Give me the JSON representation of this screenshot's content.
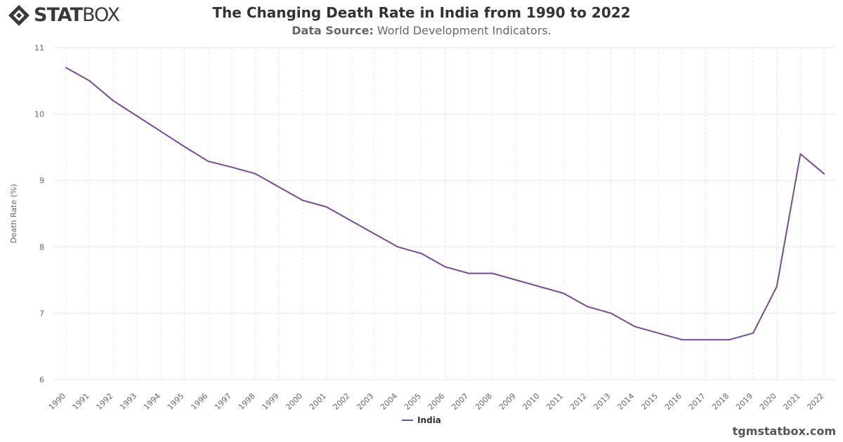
{
  "brand": {
    "logo_text_bold": "STAT",
    "logo_text_light": "BOX",
    "site": "tgmstatbox.com"
  },
  "header": {
    "title": "The Changing Death Rate in India from 1990 to 2022",
    "source_label": "Data Source:",
    "source_value": "World Development Indicators."
  },
  "colors": {
    "series_line": "#7a4a8f",
    "grid": "#e6e6e6",
    "tick_text": "#666666"
  },
  "chart_data": {
    "type": "line",
    "title": "The Changing Death Rate in India from 1990 to 2022",
    "subtitle": "Data Source: World Development Indicators.",
    "xlabel": "",
    "ylabel": "Death Rate (%)",
    "ylim": [
      6,
      11
    ],
    "yticks": [
      6,
      7,
      8,
      9,
      10,
      11
    ],
    "grid": true,
    "legend": "bottom-center",
    "x": [
      1990,
      1991,
      1992,
      1993,
      1994,
      1995,
      1996,
      1997,
      1998,
      1999,
      2000,
      2001,
      2002,
      2003,
      2004,
      2005,
      2006,
      2007,
      2008,
      2009,
      2010,
      2011,
      2012,
      2013,
      2014,
      2015,
      2016,
      2017,
      2018,
      2019,
      2020,
      2021,
      2022
    ],
    "series": [
      {
        "name": "India",
        "values": [
          10.7,
          10.5,
          10.2,
          9.97,
          9.74,
          9.51,
          9.29,
          9.2,
          9.1,
          8.9,
          8.7,
          8.6,
          8.4,
          8.2,
          8.0,
          7.9,
          7.7,
          7.6,
          7.6,
          7.5,
          7.4,
          7.3,
          7.1,
          7.0,
          6.8,
          6.7,
          6.6,
          6.6,
          6.6,
          6.7,
          7.4,
          9.4,
          9.1
        ]
      }
    ]
  }
}
